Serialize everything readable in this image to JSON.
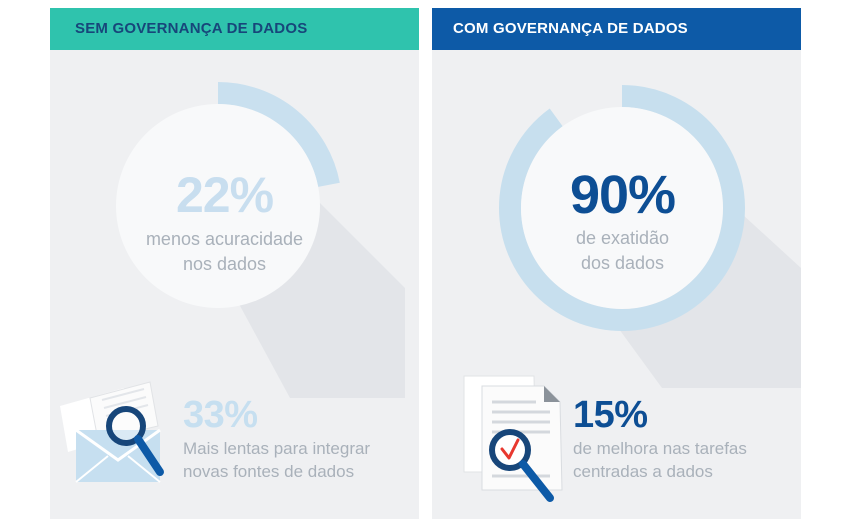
{
  "left_panel": {
    "header": "SEM GOVERNANÇA DE DADOS",
    "circle_stat": {
      "value": "22%",
      "label": "menos acuracidade\nnos dados",
      "ring_fraction": 0.22
    },
    "bottom_stat": {
      "value": "33%",
      "label": "Mais lentas para integrar\nnovas fontes de dados",
      "icon": "envelope-magnifier-icon"
    },
    "colors": {
      "header_bg": "#2fc3ad",
      "header_text": "#17467a",
      "accent": "#c4ddee"
    }
  },
  "right_panel": {
    "header": "COM GOVERNANÇA DE DADOS",
    "circle_stat": {
      "value": "90%",
      "label": "de exatidão\ndos dados",
      "ring_fraction": 0.9
    },
    "bottom_stat": {
      "value": "15%",
      "label": "de melhora nas tarefas\ncentradas a dados",
      "icon": "document-check-magnifier-icon"
    },
    "colors": {
      "header_bg": "#0d5aa7",
      "header_text": "#ffffff",
      "accent": "#0d5aa7"
    }
  }
}
